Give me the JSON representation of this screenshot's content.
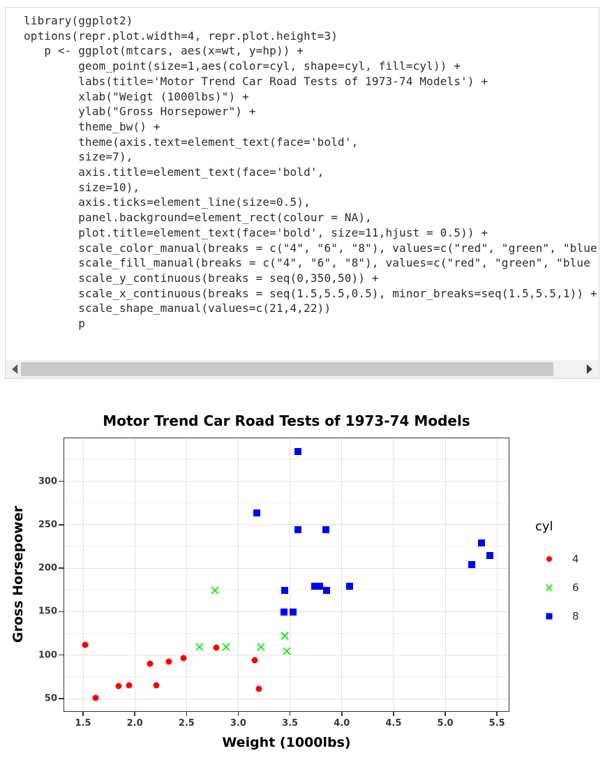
{
  "code_cell": {
    "lines": [
      "library(ggplot2)",
      "options(repr.plot.width=4, repr.plot.height=3)",
      "   p <- ggplot(mtcars, aes(x=wt, y=hp)) +",
      "        geom_point(size=1,aes(color=cyl, shape=cyl, fill=cyl)) +",
      "        labs(title='Motor Trend Car Road Tests of 1973-74 Models') +",
      "        xlab(\"Weigt (1000lbs)\") +",
      "        ylab(\"Gross Horsepower\") +",
      "        theme_bw() +",
      "        theme(axis.text=element_text(face='bold',",
      "        size=7),",
      "        axis.title=element_text(face='bold',",
      "        size=10),",
      "        axis.ticks=element_line(size=0.5),",
      "        panel.background=element_rect(colour = NA),",
      "        plot.title=element_text(face='bold', size=11,hjust = 0.5)) +",
      "        scale_color_manual(breaks = c(\"4\", \"6\", \"8\"), values=c(\"red\", \"green\", \"blue",
      "        scale_fill_manual(breaks = c(\"4\", \"6\", \"8\"), values=c(\"red\", \"green\", \"blue",
      "        scale_y_continuous(breaks = seq(0,350,50)) +",
      "        scale_x_continuous(breaks = seq(1.5,5.5,0.5), minor_breaks=seq(1.5,5.5,1)) +",
      "        scale_shape_manual(values=c(21,4,22))",
      "        p"
    ]
  },
  "chart": {
    "title": "Motor Trend Car Road Tests of 1973-74 Models",
    "xlabel": "Weight (1000lbs)",
    "ylabel": "Gross Horsepower",
    "legend_title": "cyl"
  },
  "chart_data": {
    "type": "scatter",
    "title": "Motor Trend Car Road Tests of 1973-74 Models",
    "xlabel": "Weight (1000lbs)",
    "ylabel": "Gross Horsepower",
    "xlim": [
      1.31,
      5.62
    ],
    "ylim": [
      37.5,
      349
    ],
    "x_ticks": [
      1.5,
      2.0,
      2.5,
      3.0,
      3.5,
      4.0,
      4.5,
      5.0,
      5.5
    ],
    "y_ticks": [
      50,
      100,
      150,
      200,
      250,
      300
    ],
    "y_minor_ticks": [
      75,
      125,
      175,
      225,
      275,
      325
    ],
    "grid": true,
    "legend_position": "right",
    "legend_title": "cyl",
    "series": [
      {
        "name": "4",
        "color": "#FF0000",
        "shape": "filled-circle",
        "points": [
          [
            2.32,
            93
          ],
          [
            3.19,
            62
          ],
          [
            3.15,
            95
          ],
          [
            2.2,
            66
          ],
          [
            1.615,
            52
          ],
          [
            1.835,
            65
          ],
          [
            2.465,
            97
          ],
          [
            1.935,
            66
          ],
          [
            2.14,
            91
          ],
          [
            1.513,
            113
          ],
          [
            2.78,
            109
          ]
        ]
      },
      {
        "name": "6",
        "color": "#00EE00",
        "shape": "x",
        "points": [
          [
            2.62,
            110
          ],
          [
            2.875,
            110
          ],
          [
            3.215,
            110
          ],
          [
            3.46,
            105
          ],
          [
            3.44,
            123
          ],
          [
            3.44,
            123
          ],
          [
            2.77,
            175
          ]
        ]
      },
      {
        "name": "8",
        "color": "#0000FF",
        "shape": "filled-square",
        "points": [
          [
            3.44,
            175
          ],
          [
            3.57,
            245
          ],
          [
            4.07,
            180
          ],
          [
            3.73,
            180
          ],
          [
            3.78,
            180
          ],
          [
            5.25,
            205
          ],
          [
            5.424,
            215
          ],
          [
            5.345,
            230
          ],
          [
            3.52,
            150
          ],
          [
            3.435,
            150
          ],
          [
            3.84,
            245
          ],
          [
            3.845,
            175
          ],
          [
            3.17,
            264
          ],
          [
            3.57,
            335
          ]
        ]
      }
    ]
  }
}
